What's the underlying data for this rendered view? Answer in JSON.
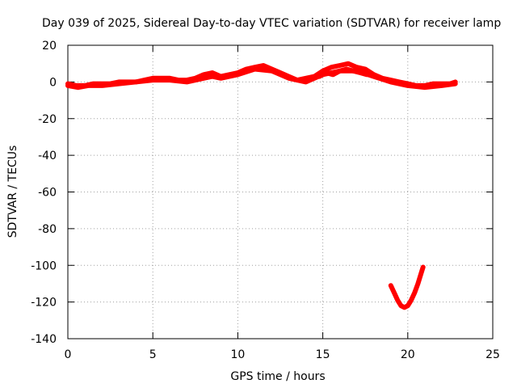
{
  "chart_data": {
    "type": "line",
    "title": "Day 039 of 2025, Sidereal Day-to-day VTEC variation (SDTVAR) for receiver lamp",
    "xlabel": "GPS time / hours",
    "ylabel": "SDTVAR / TECUs",
    "xlim": [
      0,
      25
    ],
    "ylim": [
      -140,
      20
    ],
    "xticks": [
      0,
      5,
      10,
      15,
      20,
      25
    ],
    "yticks": [
      20,
      0,
      -20,
      -40,
      -60,
      -80,
      -100,
      -120,
      -140
    ],
    "grid": true,
    "series": [
      {
        "color": "#ff0000",
        "segments": [
          [
            [
              0.0,
              -1
            ],
            [
              0.5,
              -2
            ],
            [
              1.0,
              -2
            ],
            [
              1.5,
              -1
            ],
            [
              2.0,
              -1
            ],
            [
              2.5,
              -1
            ],
            [
              3.0,
              0
            ],
            [
              3.5,
              0
            ],
            [
              4.0,
              0
            ],
            [
              4.5,
              1
            ],
            [
              5.0,
              2
            ],
            [
              5.5,
              2
            ],
            [
              6.0,
              2
            ],
            [
              6.5,
              1
            ],
            [
              7.0,
              1
            ],
            [
              7.5,
              2
            ],
            [
              8.0,
              4
            ],
            [
              8.5,
              5
            ],
            [
              9.0,
              3
            ],
            [
              9.5,
              4
            ],
            [
              10.0,
              5
            ],
            [
              10.5,
              7
            ],
            [
              11.0,
              8
            ],
            [
              11.5,
              9
            ],
            [
              12.0,
              7
            ],
            [
              12.5,
              5
            ],
            [
              13.0,
              3
            ],
            [
              13.5,
              1
            ],
            [
              14.0,
              2
            ],
            [
              14.5,
              3
            ],
            [
              15.0,
              6
            ],
            [
              15.5,
              8
            ],
            [
              16.0,
              9
            ],
            [
              16.5,
              10
            ],
            [
              17.0,
              8
            ],
            [
              17.5,
              7
            ],
            [
              18.0,
              4
            ],
            [
              18.5,
              2
            ],
            [
              19.0,
              1
            ],
            [
              19.5,
              0
            ],
            [
              20.0,
              -1
            ],
            [
              20.5,
              -2
            ],
            [
              21.0,
              -2
            ],
            [
              21.5,
              -1
            ],
            [
              22.0,
              -1
            ],
            [
              22.5,
              -1
            ],
            [
              22.8,
              0
            ]
          ],
          [
            [
              14.8,
              3
            ],
            [
              15.2,
              5
            ],
            [
              15.6,
              4
            ],
            [
              16.0,
              6
            ],
            [
              16.4,
              7
            ],
            [
              16.8,
              6
            ],
            [
              17.2,
              5
            ],
            [
              17.6,
              4
            ]
          ],
          [
            [
              0.0,
              -2
            ],
            [
              0.6,
              -3
            ],
            [
              1.2,
              -2
            ],
            [
              2.0,
              -2
            ],
            [
              3.0,
              -1
            ],
            [
              4.0,
              0
            ],
            [
              5.0,
              1
            ],
            [
              6.0,
              1
            ],
            [
              7.0,
              0
            ],
            [
              8.0,
              2
            ],
            [
              8.5,
              3
            ],
            [
              9.0,
              2
            ],
            [
              10.0,
              4
            ],
            [
              11.0,
              7
            ],
            [
              12.0,
              6
            ],
            [
              13.0,
              2
            ],
            [
              14.0,
              0
            ],
            [
              15.0,
              4
            ],
            [
              16.0,
              6
            ],
            [
              17.0,
              6
            ],
            [
              18.0,
              3
            ],
            [
              19.0,
              0
            ],
            [
              20.0,
              -2
            ],
            [
              21.0,
              -3
            ],
            [
              22.0,
              -2
            ],
            [
              22.8,
              -1
            ]
          ],
          [
            [
              19.0,
              -111
            ],
            [
              19.2,
              -115
            ],
            [
              19.4,
              -119
            ],
            [
              19.6,
              -122
            ],
            [
              19.8,
              -123
            ],
            [
              20.0,
              -122
            ],
            [
              20.2,
              -119
            ],
            [
              20.4,
              -115
            ],
            [
              20.6,
              -110
            ],
            [
              20.8,
              -104
            ],
            [
              20.9,
              -101
            ]
          ]
        ]
      }
    ]
  }
}
